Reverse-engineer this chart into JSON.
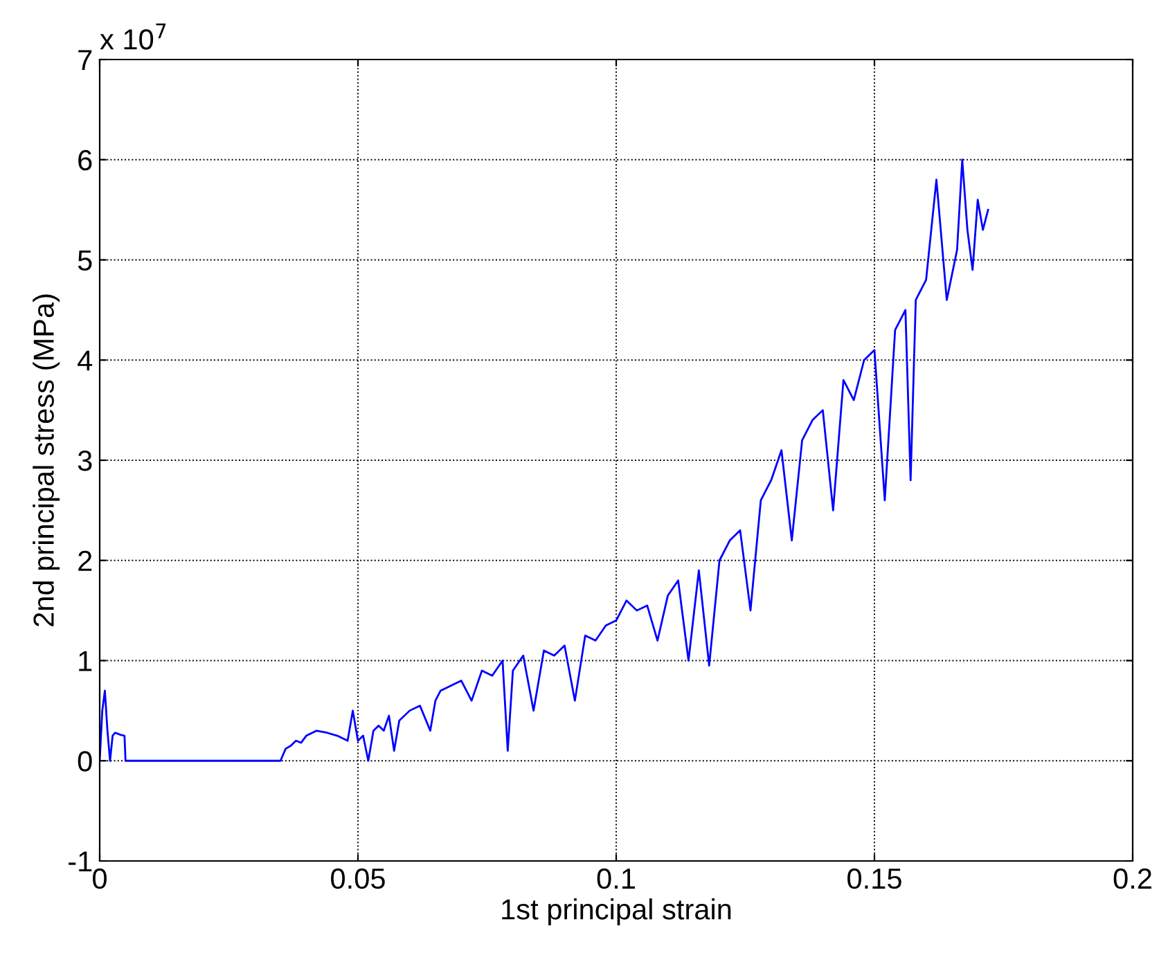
{
  "chart_data": {
    "type": "line",
    "xlabel": "1st principal strain",
    "ylabel": "2nd principal stress (MPa)",
    "annotations": [
      "x 10$^{7}$"
    ],
    "series": [
      {
        "color": "#0000ff",
        "x": [
          0,
          0.0005,
          0.001,
          0.0015,
          0.002,
          0.0025,
          0.003,
          0.004,
          0.0048,
          0.005,
          0.01,
          0.02,
          0.03,
          0.035,
          0.036,
          0.037,
          0.038,
          0.039,
          0.04,
          0.042,
          0.044,
          0.046,
          0.048,
          0.049,
          0.05,
          0.051,
          0.052,
          0.053,
          0.054,
          0.055,
          0.056,
          0.057,
          0.058,
          0.06,
          0.062,
          0.064,
          0.065,
          0.066,
          0.068,
          0.07,
          0.072,
          0.074,
          0.076,
          0.078,
          0.079,
          0.08,
          0.082,
          0.084,
          0.086,
          0.088,
          0.09,
          0.092,
          0.094,
          0.096,
          0.098,
          0.1,
          0.102,
          0.104,
          0.106,
          0.108,
          0.11,
          0.112,
          0.114,
          0.116,
          0.118,
          0.12,
          0.122,
          0.124,
          0.126,
          0.128,
          0.13,
          0.132,
          0.134,
          0.136,
          0.138,
          0.14,
          0.142,
          0.144,
          0.146,
          0.148,
          0.15,
          0.152,
          0.154,
          0.156,
          0.157,
          0.158,
          0.16,
          0.162,
          0.164,
          0.166,
          0.167,
          0.168,
          0.169,
          0.17,
          0.171,
          0.172
        ],
        "values": [
          0,
          0.5,
          0.7,
          0.3,
          0,
          0.25,
          0.28,
          0.26,
          0.25,
          0,
          0,
          0,
          0,
          0,
          0.12,
          0.15,
          0.2,
          0.18,
          0.25,
          0.3,
          0.28,
          0.25,
          0.2,
          0.5,
          0.2,
          0.25,
          0,
          0.3,
          0.35,
          0.3,
          0.45,
          0.1,
          0.4,
          0.5,
          0.55,
          0.3,
          0.6,
          0.7,
          0.75,
          0.8,
          0.6,
          0.9,
          0.85,
          1.0,
          0.1,
          0.9,
          1.05,
          0.5,
          1.1,
          1.05,
          1.15,
          0.6,
          1.25,
          1.2,
          1.35,
          1.4,
          1.6,
          1.5,
          1.55,
          1.2,
          1.65,
          1.8,
          1.0,
          1.9,
          0.95,
          2.0,
          2.2,
          2.3,
          1.5,
          2.6,
          2.8,
          3.1,
          2.2,
          3.2,
          3.4,
          3.5,
          2.5,
          3.8,
          3.6,
          4.0,
          4.1,
          2.6,
          4.3,
          4.5,
          2.8,
          4.6,
          4.8,
          5.8,
          4.6,
          5.1,
          6.0,
          5.3,
          4.9,
          5.6,
          5.3,
          5.5
        ]
      }
    ],
    "xlim": [
      0,
      0.2
    ],
    "ylim": [
      -1,
      7
    ],
    "xticks": [
      0,
      0.05,
      0.1,
      0.15,
      0.2
    ],
    "yticks": [
      -1,
      0,
      1,
      2,
      3,
      4,
      5,
      6,
      7
    ],
    "grid": true,
    "legend": false,
    "marker": "none",
    "line_style": "solid"
  }
}
